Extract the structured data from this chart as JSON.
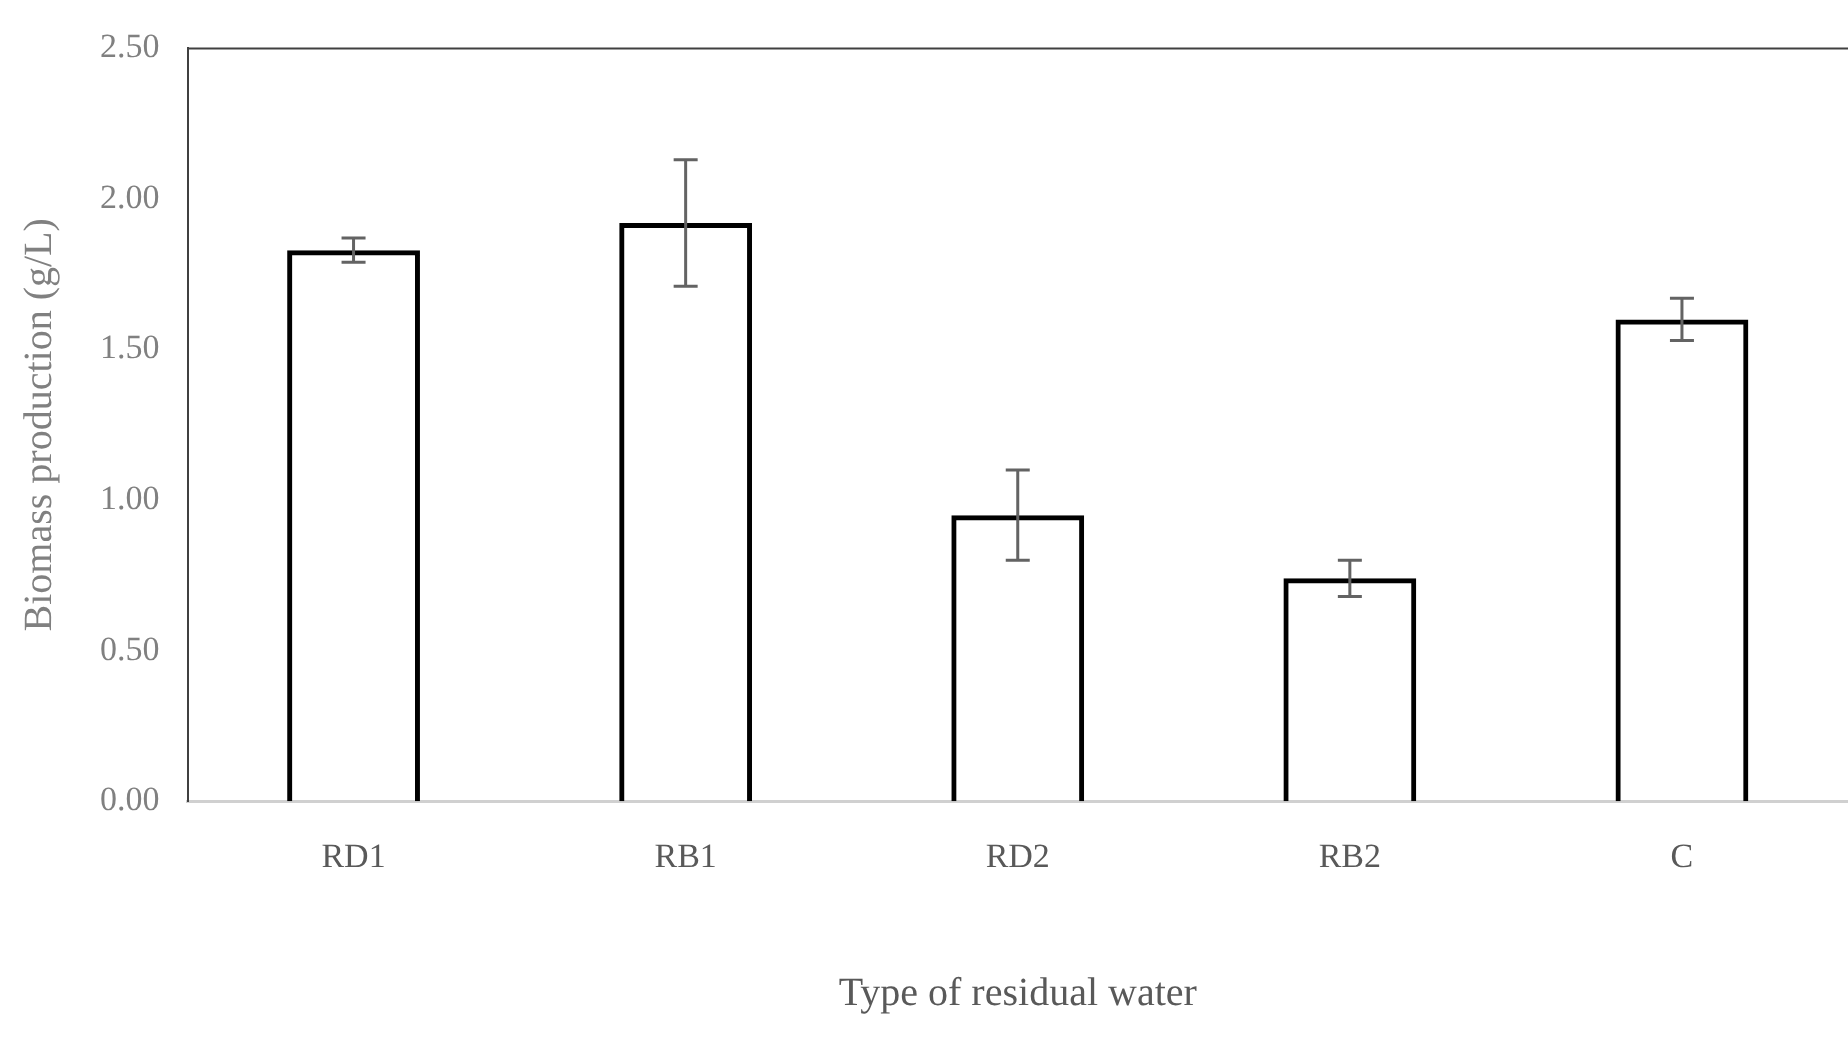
{
  "chart_data": {
    "type": "bar",
    "xlabel": "Type of residual water",
    "ylabel": "Biomass production (g/L)",
    "categories": [
      "RD1",
      "RB1",
      "RD2",
      "RB2",
      "C"
    ],
    "values": [
      1.83,
      1.92,
      0.95,
      0.74,
      1.6
    ],
    "errors": [
      0.04,
      0.21,
      0.15,
      0.06,
      0.07
    ],
    "color": "#000000",
    "ylim": [
      0,
      2.5
    ],
    "yticks": [
      {
        "value": 0,
        "label": "0.00"
      },
      {
        "value": 0.5,
        "label": "0.50"
      },
      {
        "value": 1,
        "label": "1.00"
      },
      {
        "value": 1.5,
        "label": "1.50"
      },
      {
        "value": 2,
        "label": "2.00"
      },
      {
        "value": 2.5,
        "label": "2.50"
      }
    ],
    "grid": false,
    "legend": false
  }
}
